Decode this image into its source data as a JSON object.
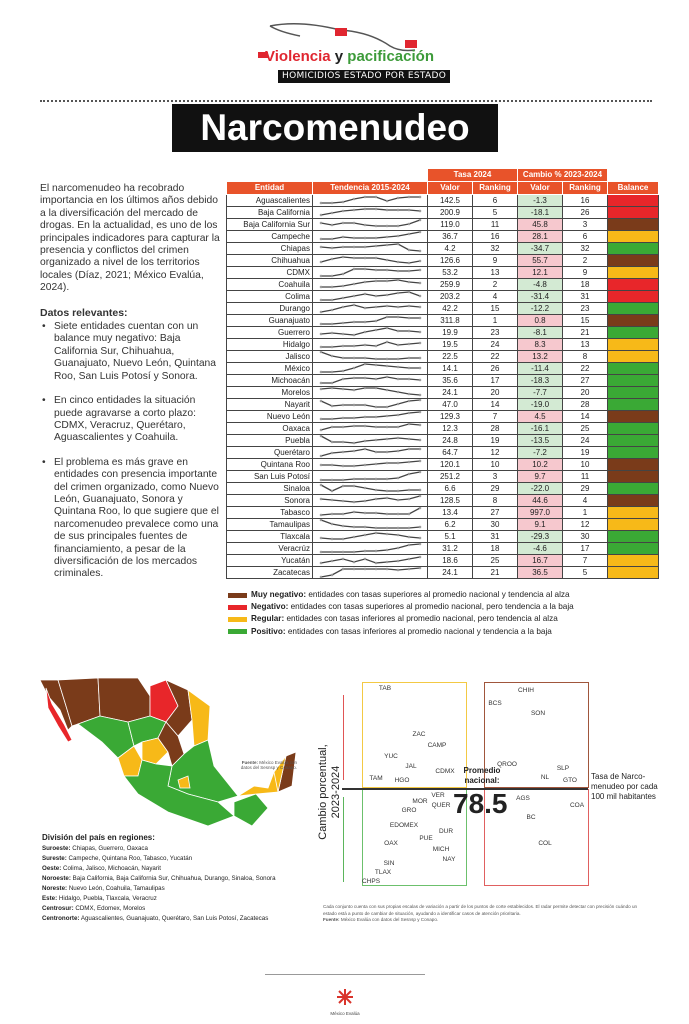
{
  "header": {
    "logo_line1a": "Violencia",
    "logo_line1b": "y",
    "logo_line1c": "pacificación",
    "logo_line2": "HOMICIDIOS ESTADO POR ESTADO",
    "title": "Narcomenudeo"
  },
  "intro": {
    "paragraph": "El narcomenudeo ha recobrado importancia en los últimos años debido a la diversificación del mercado de drogas. En la actualidad, es uno de los principales indicadores para capturar la presencia y conflictos del crimen organizado a nivel de los territorios locales (Díaz, 2021; México Evalúa, 2024).",
    "heading": "Datos relevantes:",
    "bullets": [
      "Siete entidades cuentan con un balance muy negativo: Baja California Sur, Chihuahua, Guanajuato, Nuevo León, Quintana Roo, San Luis Potosí y Sonora.",
      "En cinco entidades la situación puede agravarse a corto plazo: CDMX, Veracruz, Querétaro, Aguascalientes y Coahuila.",
      "El problema es más grave en entidades con presencia importante del crimen organizado, como Nuevo León, Guanajuato, Sonora y Quintana Roo, lo que sugiere que el narcomenudeo prevalece como una de sus principales fuentes de financiamiento, a pesar de la diversificación de los mercados criminales."
    ]
  },
  "table": {
    "group_headers": [
      "Tasa 2024",
      "Cambio % 2023-2024"
    ],
    "columns": [
      "Entidad",
      "Tendencia 2015-2024",
      "Valor",
      "Ranking",
      "Valor",
      "Ranking",
      "Balance"
    ],
    "colors": {
      "header": "#e8532a",
      "muy_negativo": "#7a3b1a",
      "negativo": "#e8262a",
      "regular": "#f7b918",
      "positivo": "#3aa935"
    },
    "rows": [
      {
        "entidad": "Aguascalientes",
        "tasa": "142.5",
        "rank": "6",
        "cambio": "-1.3",
        "crank": "16",
        "balance": "negativo",
        "trend": [
          2,
          2,
          3,
          6,
          8,
          8,
          4,
          7,
          8,
          8
        ]
      },
      {
        "entidad": "Baja California",
        "tasa": "200.9",
        "rank": "5",
        "cambio": "-18.1",
        "crank": "26",
        "balance": "negativo",
        "trend": [
          2,
          4,
          6,
          7,
          8,
          8,
          7,
          7,
          7,
          6
        ]
      },
      {
        "entidad": "Baja California Sur",
        "tasa": "119.0",
        "rank": "11",
        "cambio": "45.8",
        "crank": "3",
        "balance": "muy_negativo",
        "trend": [
          6,
          4,
          6,
          6,
          4,
          3,
          3,
          3,
          5,
          9
        ]
      },
      {
        "entidad": "Campeche",
        "tasa": "36.7",
        "rank": "16",
        "cambio": "28.1",
        "crank": "6",
        "balance": "regular",
        "trend": [
          2,
          2,
          4,
          3,
          3,
          3,
          4,
          5,
          7,
          9
        ]
      },
      {
        "entidad": "Chiapas",
        "tasa": "4.2",
        "rank": "32",
        "cambio": "-34.7",
        "crank": "32",
        "balance": "positivo",
        "trend": [
          6,
          5,
          6,
          6,
          6,
          7,
          8,
          9,
          3,
          2
        ]
      },
      {
        "entidad": "Chihuahua",
        "tasa": "126.6",
        "rank": "9",
        "cambio": "55.7",
        "crank": "2",
        "balance": "muy_negativo",
        "trend": [
          3,
          6,
          8,
          7,
          7,
          7,
          5,
          3,
          2,
          4
        ]
      },
      {
        "entidad": "CDMX",
        "tasa": "53.2",
        "rank": "13",
        "cambio": "12.1",
        "crank": "9",
        "balance": "regular",
        "trend": [
          1,
          1,
          3,
          8,
          8,
          7,
          7,
          6,
          6,
          7
        ]
      },
      {
        "entidad": "Coahuila",
        "tasa": "259.9",
        "rank": "2",
        "cambio": "-4.8",
        "crank": "18",
        "balance": "negativo",
        "trend": [
          2,
          2,
          3,
          5,
          7,
          8,
          8,
          9,
          7,
          6
        ]
      },
      {
        "entidad": "Colima",
        "tasa": "203.2",
        "rank": "4",
        "cambio": "-31.4",
        "crank": "31",
        "balance": "negativo",
        "trend": [
          1,
          1,
          3,
          5,
          7,
          5,
          6,
          8,
          9,
          5
        ]
      },
      {
        "entidad": "Durango",
        "tasa": "42.2",
        "rank": "15",
        "cambio": "-12.2",
        "crank": "23",
        "balance": "positivo",
        "trend": [
          1,
          3,
          6,
          8,
          5,
          6,
          7,
          6,
          7,
          6
        ]
      },
      {
        "entidad": "Guanajuato",
        "tasa": "311.8",
        "rank": "1",
        "cambio": "0.8",
        "crank": "15",
        "balance": "muy_negativo",
        "trend": [
          1,
          1,
          2,
          3,
          3,
          4,
          8,
          8,
          7,
          7
        ]
      },
      {
        "entidad": "Guerrero",
        "tasa": "19.9",
        "rank": "23",
        "cambio": "-8.1",
        "crank": "21",
        "balance": "positivo",
        "trend": [
          3,
          4,
          3,
          2,
          5,
          7,
          9,
          6,
          6,
          5
        ]
      },
      {
        "entidad": "Hidalgo",
        "tasa": "19.5",
        "rank": "24",
        "cambio": "8.3",
        "crank": "13",
        "balance": "regular",
        "trend": [
          2,
          2,
          3,
          3,
          4,
          3,
          7,
          4,
          5,
          6
        ]
      },
      {
        "entidad": "Jalisco",
        "tasa": "22.5",
        "rank": "22",
        "cambio": "13.2",
        "crank": "8",
        "balance": "regular",
        "trend": [
          9,
          5,
          3,
          3,
          3,
          2,
          2,
          2,
          3,
          3
        ]
      },
      {
        "entidad": "México",
        "tasa": "14.1",
        "rank": "26",
        "cambio": "-11.4",
        "crank": "22",
        "balance": "positivo",
        "trend": [
          1,
          1,
          2,
          5,
          9,
          8,
          7,
          6,
          5,
          5
        ]
      },
      {
        "entidad": "Michoacán",
        "tasa": "35.6",
        "rank": "17",
        "cambio": "-18.3",
        "crank": "27",
        "balance": "positivo",
        "trend": [
          2,
          2,
          6,
          7,
          7,
          6,
          8,
          6,
          6,
          5
        ]
      },
      {
        "entidad": "Morelos",
        "tasa": "24.1",
        "rank": "20",
        "cambio": "-7.7",
        "crank": "20",
        "balance": "positivo",
        "trend": [
          8,
          9,
          8,
          7,
          9,
          9,
          7,
          5,
          3,
          2
        ]
      },
      {
        "entidad": "Nayarit",
        "tasa": "47.0",
        "rank": "14",
        "cambio": "-19.0",
        "crank": "28",
        "balance": "positivo",
        "trend": [
          8,
          3,
          4,
          4,
          4,
          2,
          2,
          5,
          8,
          9
        ]
      },
      {
        "entidad": "Nuevo León",
        "tasa": "129.3",
        "rank": "7",
        "cambio": "4.5",
        "crank": "14",
        "balance": "muy_negativo",
        "trend": [
          2,
          2,
          3,
          3,
          4,
          4,
          5,
          6,
          8,
          9
        ]
      },
      {
        "entidad": "Oaxaca",
        "tasa": "12.3",
        "rank": "28",
        "cambio": "-16.1",
        "crank": "25",
        "balance": "positivo",
        "trend": [
          3,
          6,
          6,
          7,
          7,
          6,
          6,
          6,
          9,
          8
        ]
      },
      {
        "entidad": "Puebla",
        "tasa": "24.8",
        "rank": "19",
        "cambio": "-13.5",
        "crank": "24",
        "balance": "positivo",
        "trend": [
          9,
          3,
          3,
          2,
          4,
          5,
          6,
          7,
          6,
          5
        ]
      },
      {
        "entidad": "Querétaro",
        "tasa": "64.7",
        "rank": "12",
        "cambio": "-7.2",
        "crank": "19",
        "balance": "positivo",
        "trend": [
          1,
          4,
          5,
          6,
          8,
          5,
          5,
          6,
          8,
          8
        ]
      },
      {
        "entidad": "Quintana Roo",
        "tasa": "120.1",
        "rank": "10",
        "cambio": "10.2",
        "crank": "10",
        "balance": "muy_negativo",
        "trend": [
          4,
          4,
          3,
          3,
          4,
          5,
          6,
          6,
          7,
          8
        ]
      },
      {
        "entidad": "San Luis Potosí",
        "tasa": "251.2",
        "rank": "3",
        "cambio": "9.7",
        "crank": "11",
        "balance": "muy_negativo",
        "trend": [
          1,
          1,
          1,
          2,
          2,
          2,
          2,
          3,
          7,
          9
        ]
      },
      {
        "entidad": "Sinaloa",
        "tasa": "6.6",
        "rank": "29",
        "cambio": "-22.0",
        "crank": "29",
        "balance": "positivo",
        "trend": [
          8,
          2,
          7,
          7,
          5,
          3,
          2,
          2,
          3,
          3
        ]
      },
      {
        "entidad": "Sonora",
        "tasa": "128.5",
        "rank": "8",
        "cambio": "44.6",
        "crank": "4",
        "balance": "muy_negativo",
        "trend": [
          6,
          5,
          4,
          3,
          4,
          6,
          7,
          5,
          6,
          9
        ]
      },
      {
        "entidad": "Tabasco",
        "tasa": "13.4",
        "rank": "27",
        "cambio": "997.0",
        "crank": "1",
        "balance": "regular",
        "trend": [
          2,
          3,
          3,
          5,
          4,
          4,
          3,
          3,
          3,
          9
        ]
      },
      {
        "entidad": "Tamaulipas",
        "tasa": "6.2",
        "rank": "30",
        "cambio": "9.1",
        "crank": "12",
        "balance": "regular",
        "trend": [
          9,
          5,
          3,
          2,
          2,
          1,
          1,
          1,
          1,
          2
        ]
      },
      {
        "entidad": "Tlaxcala",
        "tasa": "5.1",
        "rank": "31",
        "cambio": "-29.3",
        "crank": "30",
        "balance": "positivo",
        "trend": [
          3,
          2,
          2,
          4,
          6,
          8,
          7,
          6,
          4,
          3
        ]
      },
      {
        "entidad": "Veracrúz",
        "tasa": "31.2",
        "rank": "18",
        "cambio": "-4.6",
        "crank": "17",
        "balance": "positivo",
        "trend": [
          1,
          1,
          1,
          1,
          2,
          2,
          3,
          5,
          8,
          9
        ]
      },
      {
        "entidad": "Yucatán",
        "tasa": "18.6",
        "rank": "25",
        "cambio": "16.7",
        "crank": "7",
        "balance": "regular",
        "trend": [
          2,
          4,
          6,
          3,
          6,
          2,
          3,
          4,
          6,
          8
        ]
      },
      {
        "entidad": "Zacatecas",
        "tasa": "24.1",
        "rank": "21",
        "cambio": "36.5",
        "crank": "5",
        "balance": "regular",
        "trend": [
          0,
          2,
          8,
          8,
          8,
          8,
          8,
          7,
          8,
          9
        ]
      }
    ]
  },
  "legend": [
    {
      "key": "muy_negativo",
      "label": "Muy negativo:",
      "text": "entidades con tasas superiores al promedio nacional y tendencia al alza"
    },
    {
      "key": "negativo",
      "label": "Negativo:",
      "text": "entidades con tasas superiores al promedio nacional, pero tendencia a la baja"
    },
    {
      "key": "regular",
      "label": "Regular:",
      "text": "entidades con tasas inferiores al promedio nacional, pero tendencia al alza"
    },
    {
      "key": "positivo",
      "label": "Positivo:",
      "text": "entidades con tasas inferiores al promedio nacional y tendencia a la baja"
    }
  ],
  "map": {
    "source_label": "Fuente:",
    "source": "México Evalúa con datos del Sesnsp y Conapo."
  },
  "regions": {
    "heading": "División del país en regiones:",
    "items": [
      {
        "name": "Suroeste:",
        "states": "Chiapas, Guerrero, Oaxaca"
      },
      {
        "name": "Sureste:",
        "states": "Campeche, Quintana Roo, Tabasco, Yucatán"
      },
      {
        "name": "Oeste:",
        "states": "Colima, Jalisco, Michoacán, Nayarit"
      },
      {
        "name": "Noroeste:",
        "states": "Baja California, Baja California Sur, Chihuahua, Durango, Sinaloa, Sonora"
      },
      {
        "name": "Noreste:",
        "states": "Nuevo León, Coahuila, Tamaulipas"
      },
      {
        "name": "Este:",
        "states": "Hidalgo, Puebla, Tlaxcala, Veracruz"
      },
      {
        "name": "Centrosur:",
        "states": "CDMX, Edomex, Morelos"
      },
      {
        "name": "Centronorte:",
        "states": "Aguascalientes, Guanajuato, Querétaro, San Luis Potosí, Zacatecas"
      }
    ]
  },
  "radar": {
    "ylabel": "Cambio porcentual, 2023-2024",
    "xlabel": "Tasa de Narco-menudeo por cada 100 mil habitantes",
    "avg_label": "Promedio nacional:",
    "avg_value": "78.5",
    "states": [
      "TAB",
      "ZAC",
      "CAMP",
      "YUC",
      "JAL",
      "TAM",
      "HGO",
      "CDMX",
      "CHIH",
      "BCS",
      "SON",
      "QROO",
      "SLP",
      "NL",
      "GTO",
      "VER",
      "MOR",
      "QUER",
      "GRO",
      "EDOMEX",
      "DUR",
      "PUE",
      "OAX",
      "MICH",
      "NAY",
      "SIN",
      "TLAX",
      "CHPS",
      "AGS",
      "COA",
      "BC",
      "COL"
    ],
    "note": "Cada conjunto cuenta con sus propias escalas de variación a partir de los puntos de corte establecidos. El radar permite detectar con precisión cuándo un estado está a punto de cambiar de situación, ayudando a identificar casos de atención prioritaria.",
    "source_label": "Fuente:",
    "source": "México Evalúa con datos del Sesnsp y Conapo."
  },
  "footer": {
    "logo": "México Evalúa"
  }
}
